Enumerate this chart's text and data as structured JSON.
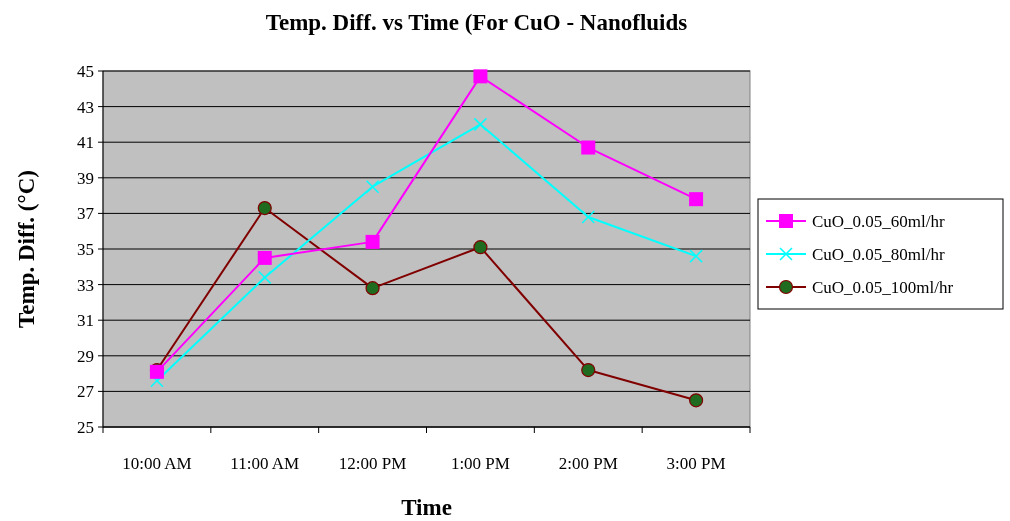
{
  "chart_data": {
    "type": "line",
    "title": "Temp. Diff. vs Time (For CuO - Nanofluids",
    "xlabel": "Time",
    "ylabel": "Temp. Diff. (°C)",
    "categories": [
      "10:00 AM",
      "11:00 AM",
      "12:00 PM",
      "1:00 PM",
      "2:00 PM",
      "3:00 PM"
    ],
    "series": [
      {
        "name": "CuO_0.05_60ml/hr",
        "color": "#ff00ff",
        "marker": "square",
        "values": [
          28.1,
          34.5,
          35.4,
          44.7,
          40.7,
          37.8
        ]
      },
      {
        "name": "CuO_0.05_80ml/hr",
        "color": "#00ffff",
        "marker": "cross",
        "values": [
          27.6,
          33.4,
          38.5,
          42.0,
          36.8,
          34.6
        ]
      },
      {
        "name": "CuO_0.05_100ml/hr",
        "color": "#800000",
        "marker": "circle",
        "values": [
          28.2,
          37.3,
          32.8,
          35.1,
          28.2,
          26.5
        ]
      }
    ],
    "ylim": [
      25,
      45
    ],
    "yticks": [
      25,
      27,
      29,
      31,
      33,
      35,
      37,
      39,
      41,
      43,
      45
    ],
    "grid": "y",
    "legend": "right"
  }
}
